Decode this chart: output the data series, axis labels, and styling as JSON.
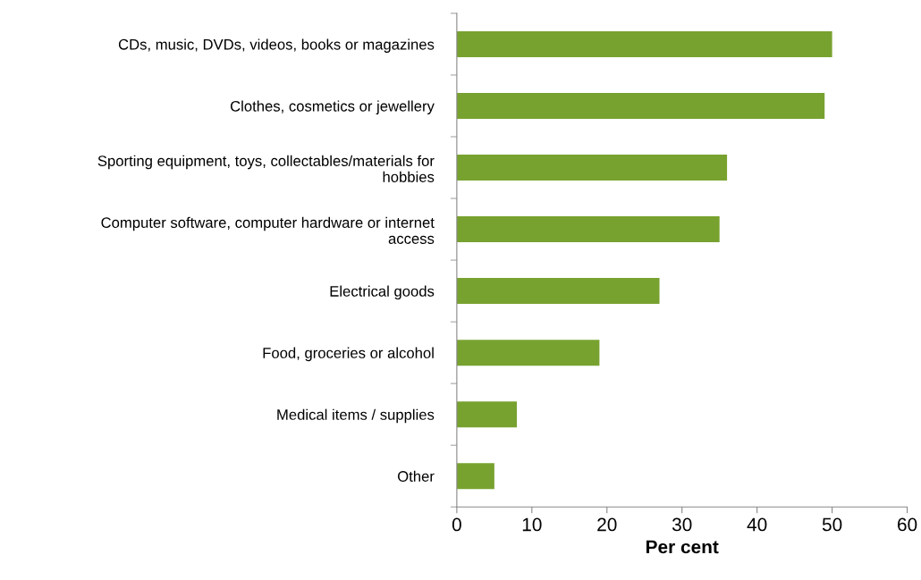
{
  "chart_data": {
    "type": "bar",
    "orientation": "horizontal",
    "xlabel": "Per cent",
    "categories": [
      "CDs, music, DVDs, videos, books or magazines",
      "Clothes, cosmetics or jewellery",
      "Sporting equipment, toys, collectables/materials for hobbies",
      "Computer software, computer hardware or internet access",
      "Electrical goods",
      "Food, groceries or alcohol",
      "Medical items / supplies",
      "Other"
    ],
    "values": [
      50,
      49,
      36,
      35,
      27,
      19,
      8,
      5
    ],
    "color": "#77a22f",
    "xlim": [
      0,
      60
    ],
    "xticks": [
      0,
      10,
      20,
      30,
      40,
      50,
      60
    ],
    "grid": false,
    "legend": false
  }
}
